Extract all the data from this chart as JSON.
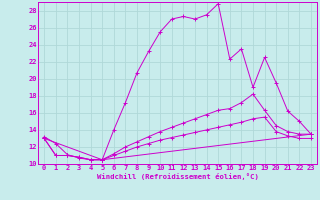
{
  "xlabel": "Windchill (Refroidissement éolien,°C)",
  "bg_color": "#c8ecec",
  "grid_color": "#b0d8d8",
  "line_color": "#cc00cc",
  "xmin": 0,
  "xmax": 23,
  "ymin": 10,
  "ymax": 29,
  "yticks": [
    10,
    12,
    14,
    16,
    18,
    20,
    22,
    24,
    26,
    28
  ],
  "xticks": [
    0,
    1,
    2,
    3,
    4,
    5,
    6,
    7,
    8,
    9,
    10,
    11,
    12,
    13,
    14,
    15,
    16,
    17,
    18,
    19,
    20,
    21,
    22,
    23
  ],
  "curve1_x": [
    0,
    1,
    2,
    3,
    4,
    5,
    6,
    7,
    8,
    9,
    10,
    11,
    12,
    13,
    14,
    15,
    16,
    17,
    18,
    19,
    20,
    21,
    22,
    23
  ],
  "curve1_y": [
    13.2,
    12.4,
    11.1,
    10.7,
    10.5,
    10.5,
    14.0,
    17.2,
    20.7,
    23.2,
    25.5,
    27.0,
    27.3,
    27.0,
    27.5,
    28.8,
    22.3,
    23.5,
    19.0,
    22.5,
    19.5,
    16.2,
    15.0,
    13.5
  ],
  "curve2_x": [
    0,
    1,
    2,
    3,
    4,
    5,
    6,
    7,
    8,
    9,
    10,
    11,
    12,
    13,
    14,
    15,
    16,
    17,
    18,
    19,
    20,
    21,
    22,
    23
  ],
  "curve2_y": [
    13.0,
    11.0,
    11.0,
    10.8,
    10.5,
    10.5,
    11.2,
    12.0,
    12.6,
    13.2,
    13.8,
    14.3,
    14.8,
    15.3,
    15.8,
    16.3,
    16.5,
    17.2,
    18.2,
    16.3,
    14.5,
    13.8,
    13.5,
    13.5
  ],
  "curve3_x": [
    0,
    5,
    23
  ],
  "curve3_y": [
    13.0,
    10.5,
    13.5
  ],
  "curve4_x": [
    0,
    1,
    2,
    3,
    4,
    5,
    6,
    7,
    8,
    9,
    10,
    11,
    12,
    13,
    14,
    15,
    16,
    17,
    18,
    19,
    20,
    21,
    22,
    23
  ],
  "curve4_y": [
    13.0,
    11.0,
    11.0,
    10.8,
    10.5,
    10.5,
    11.0,
    11.5,
    12.0,
    12.4,
    12.8,
    13.1,
    13.4,
    13.7,
    14.0,
    14.3,
    14.6,
    14.9,
    15.3,
    15.5,
    13.8,
    13.3,
    13.0,
    13.0
  ]
}
